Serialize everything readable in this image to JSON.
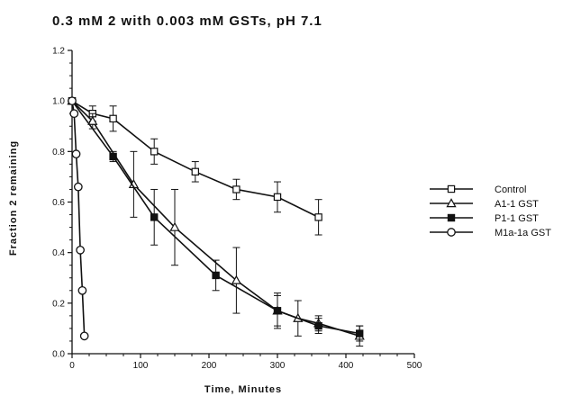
{
  "chart_data": {
    "type": "line",
    "title": "0.3  mM  2  with  0.003  mM  GSTs,  pH  7.1",
    "xlabel": "Time,  Minutes",
    "ylabel": "Fraction  2  remaining",
    "xlim": [
      0,
      500
    ],
    "ylim": [
      0.0,
      1.2
    ],
    "xticks": [
      "0",
      "100",
      "200",
      "300",
      "400",
      "500"
    ],
    "yticks": [
      "0.0",
      "0.2",
      "0.4",
      "0.6",
      "0.8",
      "1.0",
      "1.2"
    ],
    "grid": false,
    "legend_position": "right",
    "series": [
      {
        "name": "Control",
        "marker": "open-square",
        "x": [
          0,
          30,
          60,
          120,
          180,
          240,
          300,
          360
        ],
        "y": [
          1.0,
          0.95,
          0.93,
          0.8,
          0.72,
          0.65,
          0.62,
          0.54
        ],
        "err": [
          0.0,
          0.03,
          0.05,
          0.05,
          0.04,
          0.04,
          0.06,
          0.07
        ]
      },
      {
        "name": "A1-1 GST",
        "marker": "open-triangle",
        "x": [
          0,
          30,
          90,
          150,
          240,
          300,
          330,
          360,
          420
        ],
        "y": [
          1.0,
          0.92,
          0.67,
          0.5,
          0.29,
          0.17,
          0.14,
          0.12,
          0.07
        ],
        "err": [
          0.0,
          0.03,
          0.13,
          0.15,
          0.13,
          0.07,
          0.07,
          0.03,
          0.04
        ]
      },
      {
        "name": "P1-1 GST",
        "marker": "filled-square",
        "x": [
          0,
          60,
          120,
          210,
          300,
          360,
          420
        ],
        "y": [
          1.0,
          0.78,
          0.54,
          0.31,
          0.17,
          0.11,
          0.08
        ],
        "err": [
          0.0,
          0.02,
          0.11,
          0.06,
          0.06,
          0.03,
          0.03
        ]
      },
      {
        "name": "M1a-1a GST",
        "marker": "open-circle",
        "x": [
          0,
          3,
          6,
          9,
          12,
          15,
          18
        ],
        "y": [
          1.0,
          0.95,
          0.79,
          0.66,
          0.41,
          0.25,
          0.07
        ],
        "err": [
          0,
          0,
          0,
          0,
          0,
          0,
          0
        ]
      }
    ]
  }
}
